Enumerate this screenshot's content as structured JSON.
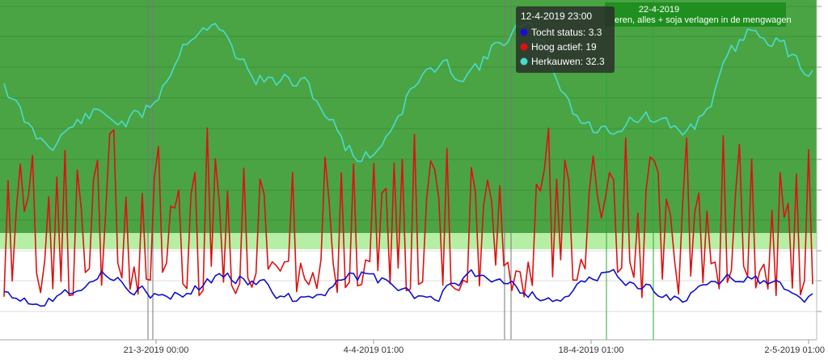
{
  "chart_data": {
    "type": "line",
    "x_ticks": [
      "21-3-2019 00:00",
      "4-4-2019 01:00",
      "18-4-2019 01:00",
      "2-5-2019 01:00"
    ],
    "bands": [
      {
        "name": "green-zone",
        "color": "#4aa444"
      },
      {
        "name": "light-green-zone",
        "color": "#b5efa5"
      },
      {
        "name": "white-zone",
        "color": "#ffffff"
      }
    ],
    "annotation": {
      "date": "22-4-2019",
      "text": "eren, alles + soja verlagen in de mengwagen",
      "color": "#1f8f1f"
    },
    "tooltip": {
      "title": "12-4-2019 23:00",
      "items": [
        {
          "label": "Tocht status: 3.3",
          "color": "#1010cc"
        },
        {
          "label": "Hoog actief: 19",
          "color": "#dd1111"
        },
        {
          "label": "Herkauwen: 32.3",
          "color": "#48dccc"
        }
      ]
    },
    "series": [
      {
        "color": "#48dccc",
        "seed": 11
      },
      {
        "color": "#dd1111",
        "seed": 23
      },
      {
        "color": "#1010cc",
        "seed": 37
      }
    ]
  }
}
